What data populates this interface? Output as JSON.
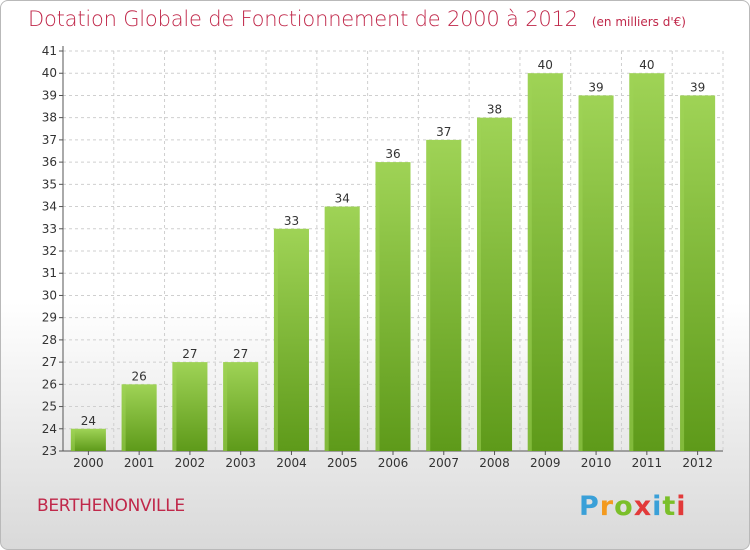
{
  "header": {
    "title": "Dotation Globale de Fonctionnement de 2000 à 2012",
    "unit": "(en milliers d'€)"
  },
  "commune": "BERTHENONVILLE",
  "logo": {
    "letters": [
      "P",
      "r",
      "o",
      "x",
      "i",
      "t",
      "i"
    ],
    "colors": [
      "#3aa0d8",
      "#f39a1f",
      "#7bbf2a",
      "#e23a3a",
      "#3aa0d8",
      "#7bbf2a",
      "#e23a3a"
    ]
  },
  "chart_data": {
    "type": "bar",
    "categories": [
      "2000",
      "2001",
      "2002",
      "2003",
      "2004",
      "2005",
      "2006",
      "2007",
      "2008",
      "2009",
      "2010",
      "2011",
      "2012"
    ],
    "values": [
      24,
      26,
      27,
      27,
      33,
      34,
      36,
      37,
      38,
      40,
      39,
      40,
      39
    ],
    "data_labels": [
      "24",
      "26",
      "27",
      "27",
      "33",
      "34",
      "36",
      "37",
      "38",
      "40",
      "39",
      "40",
      "39"
    ],
    "yticks": [
      "23",
      "24",
      "25",
      "26",
      "27",
      "28",
      "29",
      "30",
      "31",
      "32",
      "33",
      "34",
      "35",
      "36",
      "37",
      "38",
      "39",
      "40",
      "41"
    ],
    "ylim": [
      23,
      41
    ],
    "grid": true,
    "bar_color": "#7dbd32",
    "bar_color_light": "#9fd356",
    "bar_color_dark": "#5e9a1a"
  }
}
